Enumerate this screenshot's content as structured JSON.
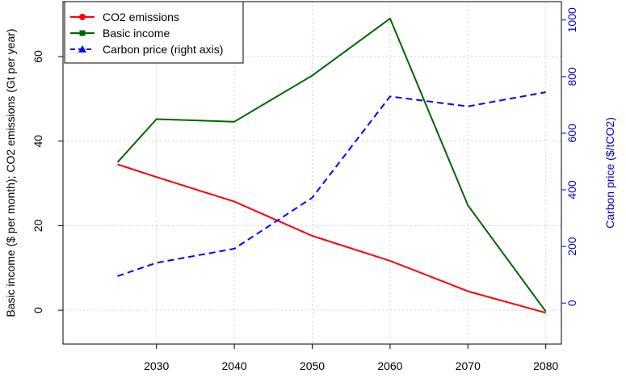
{
  "chart_data": {
    "type": "line",
    "x": [
      2025,
      2030,
      2040,
      2050,
      2060,
      2070,
      2080
    ],
    "xlim": [
      2018,
      2082
    ],
    "xticks": [
      2030,
      2040,
      2050,
      2060,
      2070,
      2080
    ],
    "xtick_labels": [
      "2030",
      "2040",
      "2050",
      "2060",
      "2070",
      "2080"
    ],
    "ylim_left": [
      -8,
      73
    ],
    "yticks_left": [
      0,
      20,
      40,
      60
    ],
    "ytick_labels_left": [
      "0",
      "20",
      "40",
      "60"
    ],
    "ylim_right": [
      -145,
      1065
    ],
    "yticks_right": [
      0,
      200,
      400,
      600,
      800,
      1000
    ],
    "ytick_labels_right": [
      "0",
      "200",
      "400",
      "600",
      "800",
      "1000"
    ],
    "ylabel_left": "Basic income ($ per month); CO2 emissions (Gt per year)",
    "ylabel_right": "Carbon price ($/tCO2)",
    "grid": true,
    "legend_position": "top-left",
    "series": [
      {
        "name": "CO2 emissions",
        "axis": "left",
        "color": "#ff0000",
        "dash": "solid",
        "marker": "circle",
        "values": [
          34.5,
          31.5,
          25.7,
          17.6,
          11.7,
          4.5,
          -0.6
        ]
      },
      {
        "name": "Basic income",
        "axis": "left",
        "color": "#006400",
        "dash": "solid",
        "marker": "square",
        "values": [
          35.0,
          45.2,
          44.6,
          55.5,
          69.0,
          24.8,
          -0.3
        ]
      },
      {
        "name": "Carbon price (right axis)",
        "axis": "right",
        "color": "#0000ff",
        "dash": "dashed",
        "marker": "triangle",
        "values": [
          95,
          142,
          192,
          372,
          730,
          695,
          745
        ]
      }
    ]
  }
}
